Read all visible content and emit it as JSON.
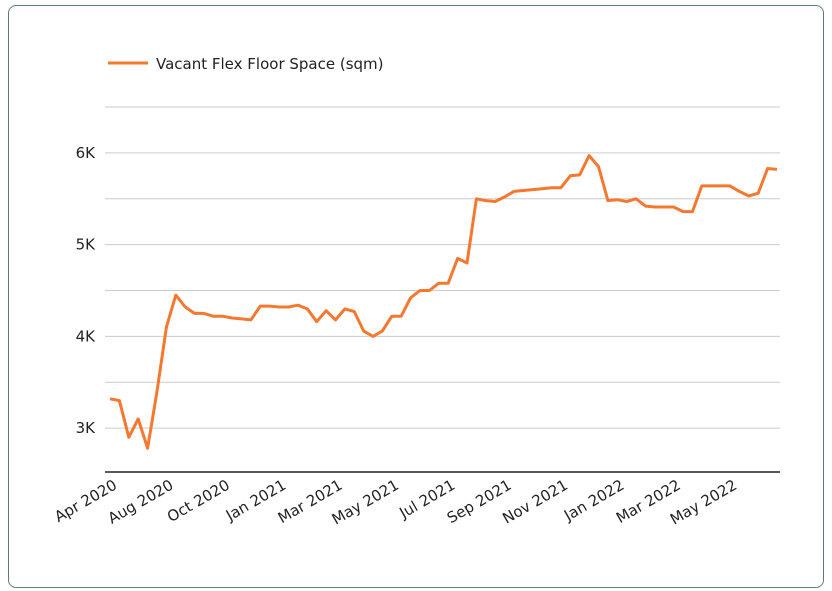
{
  "chart_data": {
    "type": "line",
    "categories": [
      "Apr 2020",
      null,
      null,
      null,
      null,
      null,
      "Aug 2020",
      null,
      null,
      null,
      null,
      null,
      "Oct 2020",
      null,
      null,
      null,
      null,
      null,
      "Jan 2021",
      null,
      null,
      null,
      null,
      null,
      "Mar 2021",
      null,
      null,
      null,
      null,
      null,
      "May 2021",
      null,
      null,
      null,
      null,
      null,
      "Jul 2021",
      null,
      null,
      null,
      null,
      null,
      "Sep 2021",
      null,
      null,
      null,
      null,
      null,
      "Nov 2021",
      null,
      null,
      null,
      null,
      null,
      "Jan 2022",
      null,
      null,
      null,
      null,
      null,
      "Mar 2022",
      null,
      null,
      null,
      null,
      null,
      "May 2022",
      null,
      null,
      null,
      null,
      null
    ],
    "series": [
      {
        "name": "Vacant Flex Floor Space (sqm)",
        "color": "#f4782f",
        "values": [
          3320,
          3300,
          2900,
          3100,
          2780,
          3400,
          4100,
          4450,
          4320,
          4250,
          4250,
          4220,
          4220,
          4200,
          4190,
          4180,
          4330,
          4330,
          4320,
          4320,
          4340,
          4300,
          4160,
          4280,
          4180,
          4300,
          4270,
          4060,
          4000,
          4060,
          4220,
          4220,
          4420,
          4500,
          4500,
          4580,
          4580,
          4850,
          4800,
          5500,
          5480,
          5470,
          5520,
          5580,
          5590,
          5600,
          5610,
          5620,
          5620,
          5750,
          5760,
          5970,
          5850,
          5480,
          5490,
          5470,
          5500,
          5420,
          5410,
          5410,
          5410,
          5360,
          5360,
          5640,
          5640,
          5640,
          5640,
          5580,
          5530,
          5560,
          5830,
          5820
        ]
      }
    ],
    "ylim": [
      2500,
      6500
    ],
    "yticks": [
      {
        "value": 3000,
        "label": "3K"
      },
      {
        "value": 4000,
        "label": "4K"
      },
      {
        "value": 5000,
        "label": "5K"
      },
      {
        "value": 6000,
        "label": "6K"
      }
    ],
    "minor_yticks": [
      3500,
      4500,
      5500,
      6500
    ],
    "grid": true,
    "legend": "top-left"
  }
}
